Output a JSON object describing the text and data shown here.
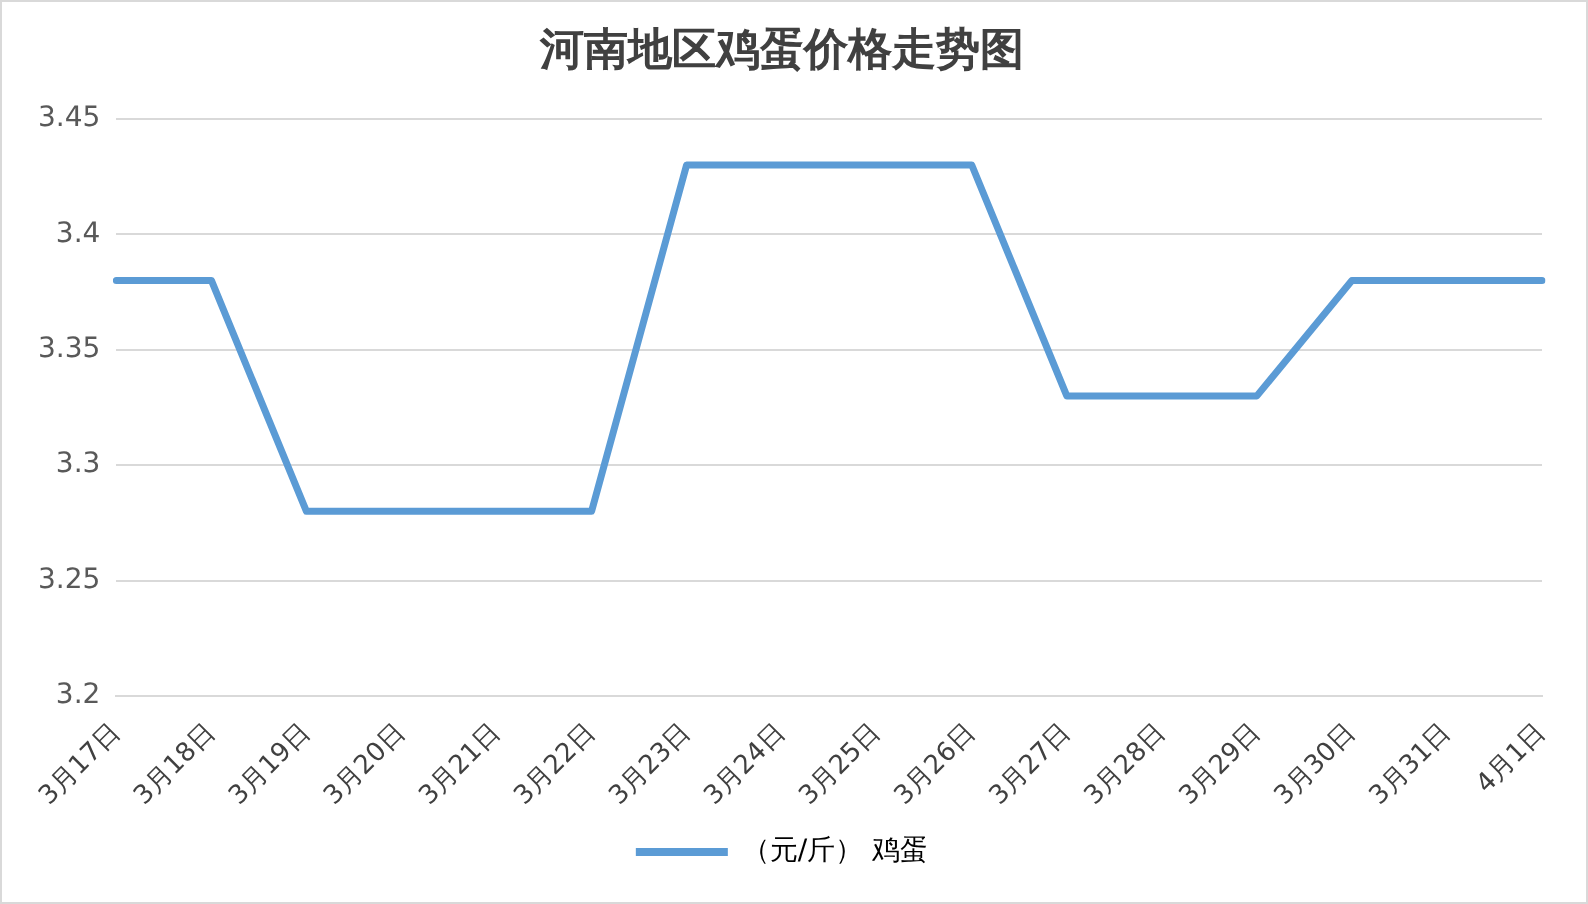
{
  "chart_data": {
    "type": "line",
    "title": "河南地区鸡蛋价格走势图",
    "categories": [
      "3月17日",
      "3月18日",
      "3月19日",
      "3月20日",
      "3月21日",
      "3月22日",
      "3月23日",
      "3月24日",
      "3月25日",
      "3月26日",
      "3月27日",
      "3月28日",
      "3月29日",
      "3月30日",
      "3月31日",
      "4月1日"
    ],
    "series": [
      {
        "name": "（元/斤） 鸡蛋",
        "color": "#5b9bd5",
        "values": [
          3.38,
          3.38,
          3.28,
          3.28,
          3.28,
          3.28,
          3.43,
          3.43,
          3.43,
          3.43,
          3.33,
          3.33,
          3.33,
          3.38,
          3.38,
          3.38
        ]
      }
    ],
    "ylim": [
      3.2,
      3.45
    ],
    "yticks": [
      3.2,
      3.25,
      3.3,
      3.35,
      3.4,
      3.45
    ],
    "grid": "y",
    "legend": "bottom",
    "marker": "none",
    "line_style": "solid"
  }
}
